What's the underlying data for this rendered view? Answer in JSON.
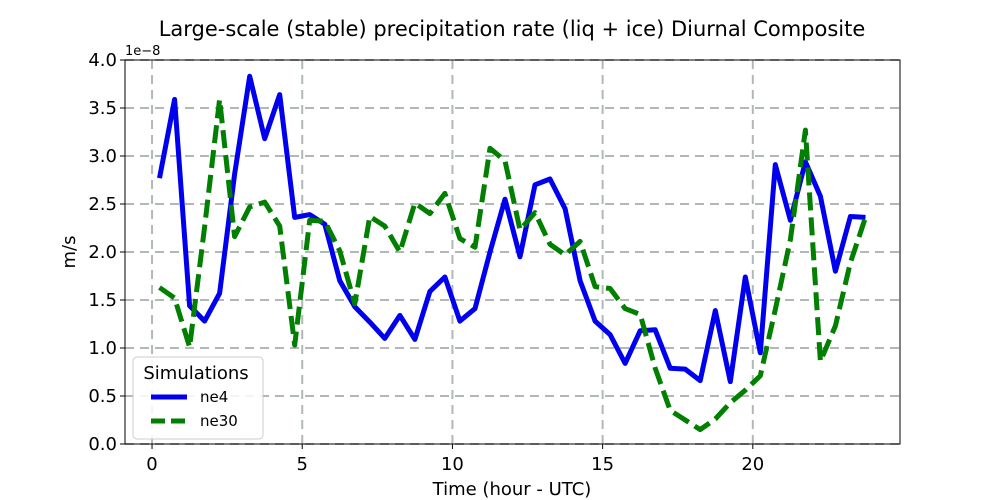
{
  "chart_data": {
    "type": "line",
    "title": "Large-scale (stable) precipitation rate (liq + ice) Diurnal Composite",
    "xlabel": "Time (hour - UTC)",
    "ylabel": "m/s",
    "y_offset_label": "1e−8",
    "xlim": [
      -0.9,
      24.9
    ],
    "ylim": [
      0.0,
      4.0
    ],
    "xticks": [
      0,
      5,
      10,
      15,
      20
    ],
    "xtick_labels": [
      "0",
      "5",
      "10",
      "15",
      "20"
    ],
    "yticks": [
      0.0,
      0.5,
      1.0,
      1.5,
      2.0,
      2.5,
      3.0,
      3.5,
      4.0
    ],
    "ytick_labels": [
      "0.0",
      "0.5",
      "1.0",
      "1.5",
      "2.0",
      "2.5",
      "3.0",
      "3.5",
      "4.0"
    ],
    "grid": true,
    "legend": {
      "title": "Simulations",
      "position": "lower-left"
    },
    "x": [
      0.25,
      0.75,
      1.25,
      1.75,
      2.25,
      2.75,
      3.25,
      3.75,
      4.25,
      4.75,
      5.25,
      5.75,
      6.25,
      6.75,
      7.25,
      7.75,
      8.25,
      8.75,
      9.25,
      9.75,
      10.25,
      10.75,
      11.25,
      11.75,
      12.25,
      12.75,
      13.25,
      13.75,
      14.25,
      14.75,
      15.25,
      15.75,
      16.25,
      16.75,
      17.25,
      17.75,
      18.25,
      18.75,
      19.25,
      19.75,
      20.25,
      20.75,
      21.25,
      21.75,
      22.25,
      22.75,
      23.25,
      23.75
    ],
    "series": [
      {
        "name": "ne4",
        "color": "#0000ee",
        "style": "solid",
        "values": [
          2.77,
          3.59,
          1.44,
          1.28,
          1.57,
          2.81,
          3.83,
          3.18,
          3.64,
          2.36,
          2.39,
          2.29,
          1.7,
          1.43,
          1.27,
          1.1,
          1.34,
          1.09,
          1.59,
          1.74,
          1.28,
          1.41,
          2.0,
          2.55,
          1.95,
          2.7,
          2.76,
          2.45,
          1.7,
          1.28,
          1.14,
          0.84,
          1.18,
          1.19,
          0.79,
          0.78,
          0.66,
          1.39,
          0.65,
          1.74,
          0.95,
          2.91,
          2.33,
          2.94,
          2.58,
          1.8,
          2.37,
          2.36
        ]
      },
      {
        "name": "ne30",
        "color": "#007f00",
        "style": "dashed",
        "values": [
          1.63,
          1.52,
          1.01,
          2.26,
          3.59,
          2.16,
          2.47,
          2.52,
          2.27,
          1.03,
          2.33,
          2.32,
          2.01,
          1.46,
          2.37,
          2.27,
          2.0,
          2.51,
          2.4,
          2.61,
          2.14,
          2.05,
          3.08,
          2.95,
          2.23,
          2.41,
          2.08,
          1.97,
          2.11,
          1.64,
          1.62,
          1.41,
          1.35,
          0.79,
          0.35,
          0.25,
          0.15,
          0.26,
          0.43,
          0.56,
          0.71,
          1.4,
          2.13,
          3.27,
          0.86,
          1.23,
          1.89,
          2.36
        ]
      }
    ]
  }
}
